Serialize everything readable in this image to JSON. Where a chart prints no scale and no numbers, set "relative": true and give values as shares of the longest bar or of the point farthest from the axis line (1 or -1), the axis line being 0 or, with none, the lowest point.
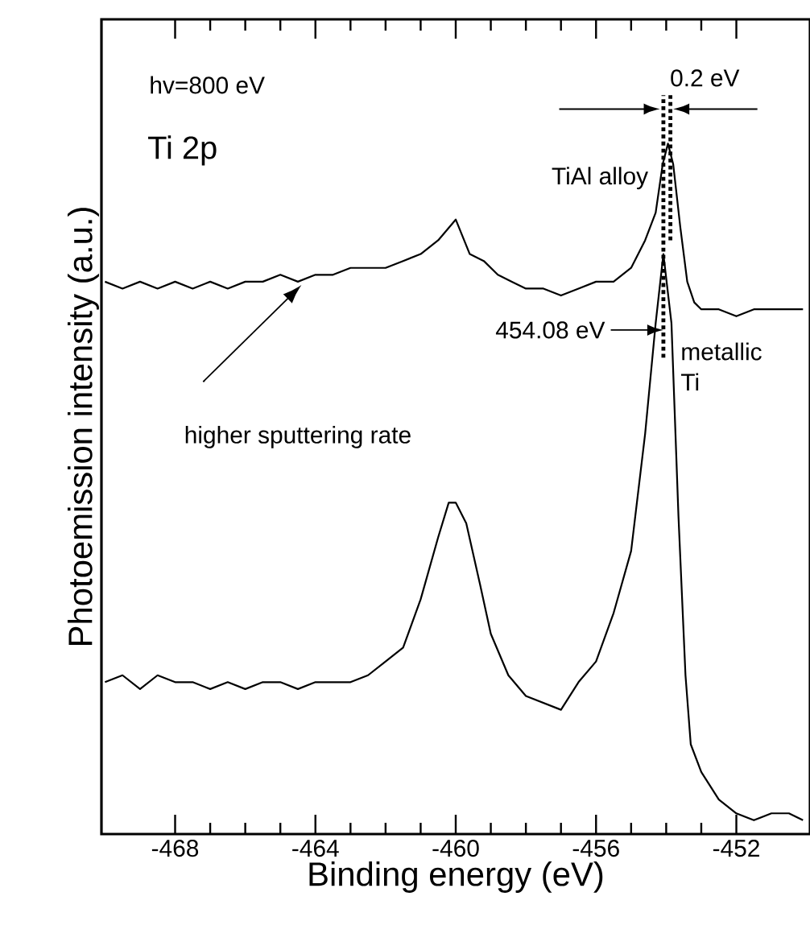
{
  "chart_data": {
    "type": "line",
    "xlabel": "Binding energy (eV)",
    "ylabel": "Photoemission intensity (a.u.)",
    "relative": true,
    "xlim": [
      -470.1,
      -449.9
    ],
    "xticks": [
      -468,
      -464,
      -460,
      -456,
      -452
    ],
    "series": [
      {
        "name": "TiAl alloy",
        "color": "#000000",
        "x": [
          -470.0,
          -469.5,
          -469,
          -468.5,
          -468,
          -467.5,
          -467,
          -466.5,
          -466,
          -465.5,
          -465,
          -464.5,
          -464,
          -463.5,
          -463,
          -462.5,
          -462,
          -461.5,
          -461,
          -460.5,
          -460.0,
          -459.6,
          -459.2,
          -458.8,
          -458.4,
          -458,
          -457.5,
          -457,
          -456.5,
          -456,
          -455.5,
          -455,
          -454.6,
          -454.3,
          -454.1,
          -453.95,
          -453.8,
          -453.6,
          -453.4,
          -453.2,
          -453,
          -452.5,
          -452,
          -451.5,
          -451,
          -450.5,
          -450.1
        ],
        "values": [
          0.8,
          0.79,
          0.8,
          0.79,
          0.8,
          0.79,
          0.8,
          0.79,
          0.8,
          0.8,
          0.81,
          0.8,
          0.81,
          0.81,
          0.82,
          0.82,
          0.82,
          0.83,
          0.84,
          0.86,
          0.89,
          0.84,
          0.83,
          0.81,
          0.8,
          0.79,
          0.79,
          0.78,
          0.79,
          0.8,
          0.8,
          0.82,
          0.86,
          0.9,
          0.97,
          1.0,
          0.97,
          0.88,
          0.8,
          0.77,
          0.76,
          0.76,
          0.75,
          0.76,
          0.76,
          0.76,
          0.76
        ]
      },
      {
        "name": "metallic Ti",
        "color": "#000000",
        "x": [
          -470,
          -469.5,
          -469,
          -468.5,
          -468,
          -467.5,
          -467,
          -466.5,
          -466,
          -465.5,
          -465,
          -464.5,
          -464,
          -463.5,
          -463,
          -462.5,
          -462,
          -461.5,
          -461,
          -460.5,
          -460.2,
          -460,
          -459.7,
          -459.3,
          -459,
          -458.5,
          -458,
          -457.5,
          -457,
          -456.5,
          -456,
          -455.5,
          -455,
          -454.6,
          -454.3,
          -454.08,
          -453.85,
          -453.65,
          -453.45,
          -453.3,
          -453,
          -452.5,
          -452,
          -451.5,
          -451,
          -450.5,
          -450.1
        ],
        "values": [
          0.22,
          0.23,
          0.21,
          0.23,
          0.22,
          0.22,
          0.21,
          0.22,
          0.21,
          0.22,
          0.22,
          0.21,
          0.22,
          0.22,
          0.22,
          0.23,
          0.25,
          0.27,
          0.34,
          0.43,
          0.48,
          0.48,
          0.45,
          0.36,
          0.29,
          0.23,
          0.2,
          0.19,
          0.18,
          0.22,
          0.25,
          0.32,
          0.41,
          0.58,
          0.74,
          0.84,
          0.74,
          0.46,
          0.23,
          0.13,
          0.09,
          0.05,
          0.03,
          0.02,
          0.03,
          0.03,
          0.02
        ]
      }
    ],
    "ref_lines": [
      {
        "axis": "x",
        "value": -454.08,
        "line_style": "dotted"
      },
      {
        "axis": "x",
        "value": -453.88,
        "line_style": "dotted"
      }
    ],
    "annotations": [
      "hv=800 eV",
      "Ti 2p",
      "0.2 eV",
      {
        "text": "454.08 eV",
        "x": -454.08,
        "y": 0.73
      },
      "higher sputtering rate"
    ]
  }
}
